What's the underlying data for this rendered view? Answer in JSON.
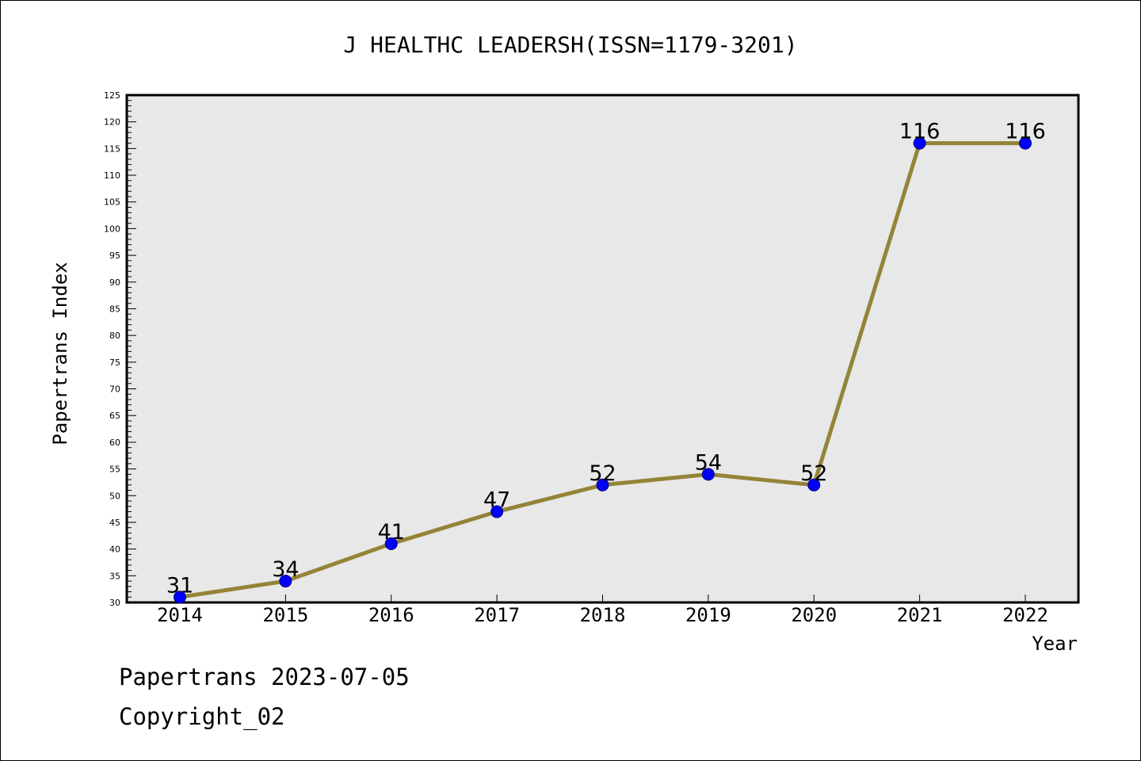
{
  "chart_data": {
    "type": "line",
    "title": "J HEALTHC LEADERSH(ISSN=1179-3201)",
    "xlabel": "Year",
    "ylabel": "Papertrans Index",
    "categories": [
      "2014",
      "2015",
      "2016",
      "2017",
      "2018",
      "2019",
      "2020",
      "2021",
      "2022"
    ],
    "series": [
      {
        "values": [
          31,
          34,
          41,
          47,
          52,
          54,
          52,
          116,
          116
        ]
      }
    ],
    "data_labels": [
      "31",
      "34",
      "41",
      "47",
      "52",
      "54",
      "52",
      "116",
      "116"
    ],
    "ylim": [
      30,
      125
    ],
    "yticks": [
      30,
      35,
      40,
      45,
      50,
      55,
      60,
      65,
      70,
      75,
      80,
      85,
      90,
      95,
      100,
      105,
      110,
      115,
      120,
      125
    ],
    "ytick_labels": [
      "30",
      "35",
      "40",
      "45",
      "50",
      "55",
      "60",
      "65",
      "70",
      "75",
      "80",
      "85",
      "90",
      "95",
      "100",
      "105",
      "110",
      "115",
      "120",
      "125"
    ],
    "grid": false,
    "legend": "none",
    "colors": {
      "line": "#948437",
      "marker": "#0000ff",
      "plot_background": "#e8e8e8"
    }
  },
  "footer": {
    "date_text": "Papertrans 2023-07-05",
    "copyright_text": "Copyright_02"
  }
}
